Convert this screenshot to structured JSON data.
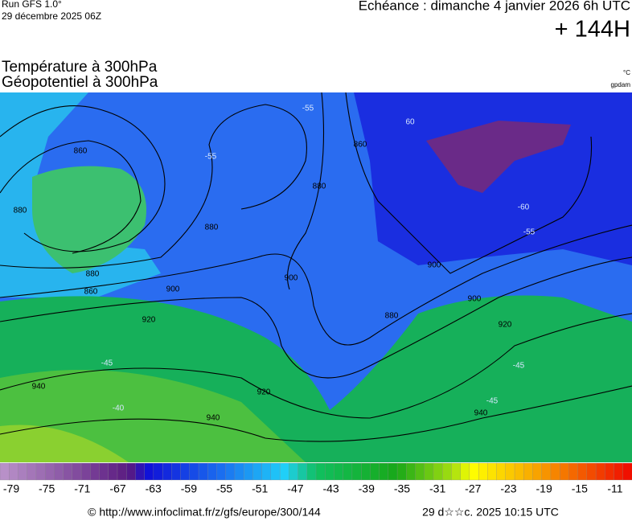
{
  "header": {
    "run": "Run GFS 1.0°",
    "run_date": "29 décembre 2025 06Z",
    "valid": "Echéance : dimanche 4 janvier 2026 6h UTC",
    "lead": "+ 144H",
    "title1": "Température à 300hPa",
    "title2": "Géopotentiel à 300hPa",
    "unit1": "°C",
    "unit2": "gpdam"
  },
  "contour_labels": [
    "860",
    "880",
    "880",
    "860",
    "880",
    "900",
    "920",
    "940",
    "900",
    "920",
    "940",
    "880",
    "900",
    "920",
    "880",
    "860",
    "900",
    "940",
    "-55",
    "-55",
    "-45",
    "-45",
    "-45",
    "-40",
    "-60",
    "-55",
    "60"
  ],
  "colorbar": {
    "labels": [
      -79,
      -75,
      -71,
      -67,
      -63,
      -59,
      -55,
      -51,
      -47,
      -43,
      -39,
      -35,
      -31,
      -27,
      -23,
      -19,
      -15,
      -11
    ]
  },
  "footer": {
    "source": "© http://www.infoclimat.fr/z/gfs/europe/300/144",
    "generated": "29 d☆☆c. 2025 10:15 UTC"
  }
}
